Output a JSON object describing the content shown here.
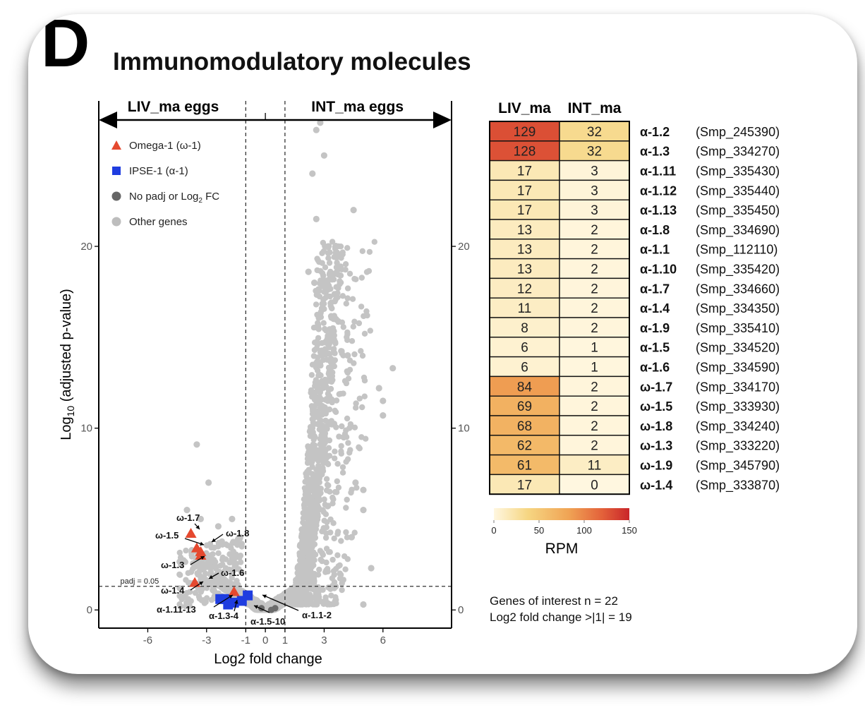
{
  "panel_letter": "D",
  "title": "Immunomodulatory molecules",
  "volcano": {
    "left_group": "LIV_ma eggs",
    "right_group": "INT_ma eggs",
    "legend": [
      {
        "label": "Omega-1 (ω-1)",
        "shape": "triangle",
        "color": "#e5492f"
      },
      {
        "label": "IPSE-1 (α-1)",
        "shape": "square",
        "color": "#1f3de0"
      },
      {
        "label": "No padj or Log₂ FC",
        "shape": "circle",
        "color": "#666666"
      },
      {
        "label": "Other genes",
        "shape": "circle",
        "color": "#bdbdbd"
      }
    ],
    "padj_label": "padj = 0.05",
    "annotations": [
      "ω-1.7",
      "ω-1.5",
      "ω-1.8",
      "ω-1.3",
      "ω-1.6",
      "ω-1.4",
      "α-1.11-13",
      "α-1.3-4",
      "α-1.5-10",
      "α-1.1-2"
    ]
  },
  "heatmap": {
    "col_headers": [
      "LIV_ma",
      "INT_ma"
    ],
    "scale_label": "RPM",
    "scale_ticks": [
      "0",
      "50",
      "100",
      "150"
    ],
    "rows": [
      {
        "name": "α-1.2",
        "id": "(Smp_245390)",
        "liv": 129,
        "int": 32
      },
      {
        "name": "α-1.3",
        "id": "(Smp_334270)",
        "liv": 128,
        "int": 32
      },
      {
        "name": "α-1.11",
        "id": "(Smp_335430)",
        "liv": 17,
        "int": 3
      },
      {
        "name": "α-1.12",
        "id": "(Smp_335440)",
        "liv": 17,
        "int": 3
      },
      {
        "name": "α-1.13",
        "id": "(Smp_335450)",
        "liv": 17,
        "int": 3
      },
      {
        "name": "α-1.8",
        "id": "(Smp_334690)",
        "liv": 13,
        "int": 2
      },
      {
        "name": "α-1.1",
        "id": "(Smp_112110)",
        "liv": 13,
        "int": 2
      },
      {
        "name": "α-1.10",
        "id": "(Smp_335420)",
        "liv": 13,
        "int": 2
      },
      {
        "name": "α-1.7",
        "id": "(Smp_334660)",
        "liv": 12,
        "int": 2
      },
      {
        "name": "α-1.4",
        "id": "(Smp_334350)",
        "liv": 11,
        "int": 2
      },
      {
        "name": "α-1.9",
        "id": "(Smp_335410)",
        "liv": 8,
        "int": 2
      },
      {
        "name": "α-1.5",
        "id": "(Smp_334520)",
        "liv": 6,
        "int": 1
      },
      {
        "name": "α-1.6",
        "id": "(Smp_334590)",
        "liv": 6,
        "int": 1
      },
      {
        "name": "ω-1.7",
        "id": "(Smp_334170)",
        "liv": 84,
        "int": 2
      },
      {
        "name": "ω-1.5",
        "id": "(Smp_333930)",
        "liv": 69,
        "int": 2
      },
      {
        "name": "ω-1.8",
        "id": "(Smp_334240)",
        "liv": 68,
        "int": 2
      },
      {
        "name": "ω-1.3",
        "id": "(Smp_333220)",
        "liv": 62,
        "int": 2
      },
      {
        "name": "ω-1.9",
        "id": "(Smp_345790)",
        "liv": 61,
        "int": 11
      },
      {
        "name": "ω-1.4",
        "id": "(Smp_333870)",
        "liv": 17,
        "int": 0
      }
    ]
  },
  "notes": [
    "Genes of interest n = 22",
    "Log2 fold change >|1| = 19"
  ],
  "chart_data": [
    {
      "type": "scatter",
      "xlabel": "Log2 fold change",
      "ylabel": "Log10 (adjusted p-value)",
      "xlim": [
        -8.5,
        9.5
      ],
      "ylim": [
        -1,
        28
      ],
      "x_ticks": [
        -6,
        -3,
        -1,
        0,
        1,
        3,
        6
      ],
      "y_ticks": [
        0,
        10,
        20
      ],
      "thresholds": {
        "x": [
          -1,
          1
        ],
        "y": 1.3
      },
      "series": [
        {
          "name": "Omega-1 (ω-1)",
          "points": [
            {
              "label": "ω-1.7",
              "x": -3.8,
              "y": 4.2
            },
            {
              "label": "ω-1.5",
              "x": -3.5,
              "y": 3.4
            },
            {
              "label": "ω-1.8",
              "x": -3.3,
              "y": 3.2
            },
            {
              "label": "ω-1.3",
              "x": -3.3,
              "y": 3.0
            },
            {
              "label": "ω-1.4",
              "x": -3.6,
              "y": 1.5
            },
            {
              "label": "ω-1.6",
              "x": -1.6,
              "y": 1.0
            }
          ]
        },
        {
          "name": "IPSE-1 (α-1)",
          "points": [
            {
              "label": "α-1.11-13",
              "x": -2.3,
              "y": 0.6
            },
            {
              "label": "α-1.3-4",
              "x": -1.6,
              "y": 0.4
            },
            {
              "label": "α-1.5-10",
              "x": -1.2,
              "y": 0.5
            },
            {
              "label": "α-1.1-2",
              "x": -0.9,
              "y": 0.8
            }
          ]
        }
      ]
    },
    {
      "type": "heatmap",
      "xlabel": "",
      "columns": [
        "LIV_ma",
        "INT_ma"
      ],
      "rows": [
        "α-1.2",
        "α-1.3",
        "α-1.11",
        "α-1.12",
        "α-1.13",
        "α-1.8",
        "α-1.1",
        "α-1.10",
        "α-1.7",
        "α-1.4",
        "α-1.9",
        "α-1.5",
        "α-1.6",
        "ω-1.7",
        "ω-1.5",
        "ω-1.8",
        "ω-1.3",
        "ω-1.9",
        "ω-1.4"
      ],
      "values": [
        [
          129,
          32
        ],
        [
          128,
          32
        ],
        [
          17,
          3
        ],
        [
          17,
          3
        ],
        [
          17,
          3
        ],
        [
          13,
          2
        ],
        [
          13,
          2
        ],
        [
          13,
          2
        ],
        [
          12,
          2
        ],
        [
          11,
          2
        ],
        [
          8,
          2
        ],
        [
          6,
          1
        ],
        [
          6,
          1
        ],
        [
          84,
          2
        ],
        [
          69,
          2
        ],
        [
          68,
          2
        ],
        [
          62,
          2
        ],
        [
          61,
          11
        ],
        [
          17,
          0
        ]
      ],
      "colorbar": {
        "label": "RPM",
        "range": [
          0,
          150
        ]
      }
    }
  ]
}
